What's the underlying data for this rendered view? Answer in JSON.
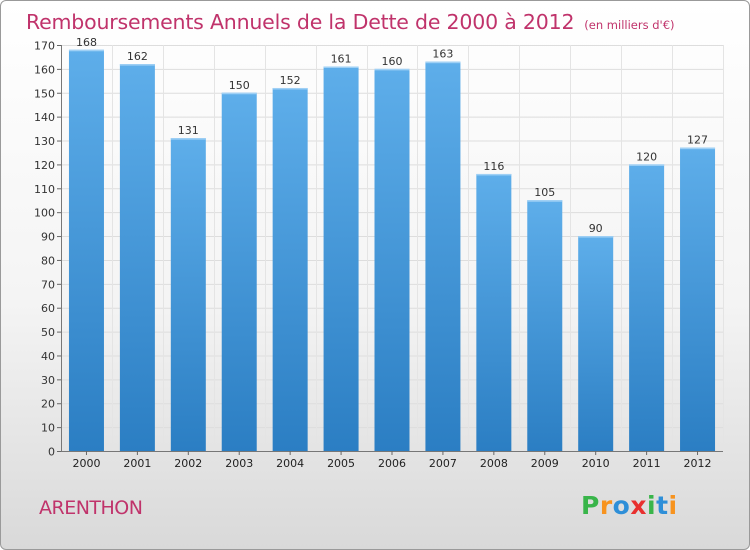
{
  "title": "Remboursements Annuels de la Dette de 2000 à 2012",
  "unit": "(en milliers d'€)",
  "location": "ARENTHON",
  "logo": {
    "letters": [
      "P",
      "r",
      "o",
      "x",
      "i",
      "t",
      "i"
    ],
    "colors": [
      "#39b54a",
      "#f7931e",
      "#2e8fd8",
      "#e8302f",
      "#39b54a",
      "#2e8fd8",
      "#f7931e"
    ]
  },
  "colors": {
    "bar_light": "#5dade8",
    "bar_dark": "#2c7fc4",
    "title": "#c0336b"
  },
  "chart_data": {
    "type": "bar",
    "categories": [
      "2000",
      "2001",
      "2002",
      "2003",
      "2004",
      "2005",
      "2006",
      "2007",
      "2008",
      "2009",
      "2010",
      "2011",
      "2012"
    ],
    "values": [
      168,
      162,
      131,
      150,
      152,
      161,
      160,
      163,
      116,
      105,
      90,
      120,
      127
    ],
    "title": "Remboursements Annuels de la Dette de 2000 à 2012",
    "xlabel": "",
    "ylabel": "",
    "ylim": [
      0,
      170
    ],
    "yticks": [
      0,
      10,
      20,
      30,
      40,
      50,
      60,
      70,
      80,
      90,
      100,
      110,
      120,
      130,
      140,
      150,
      160,
      170
    ],
    "grid": true,
    "legend": "none"
  }
}
